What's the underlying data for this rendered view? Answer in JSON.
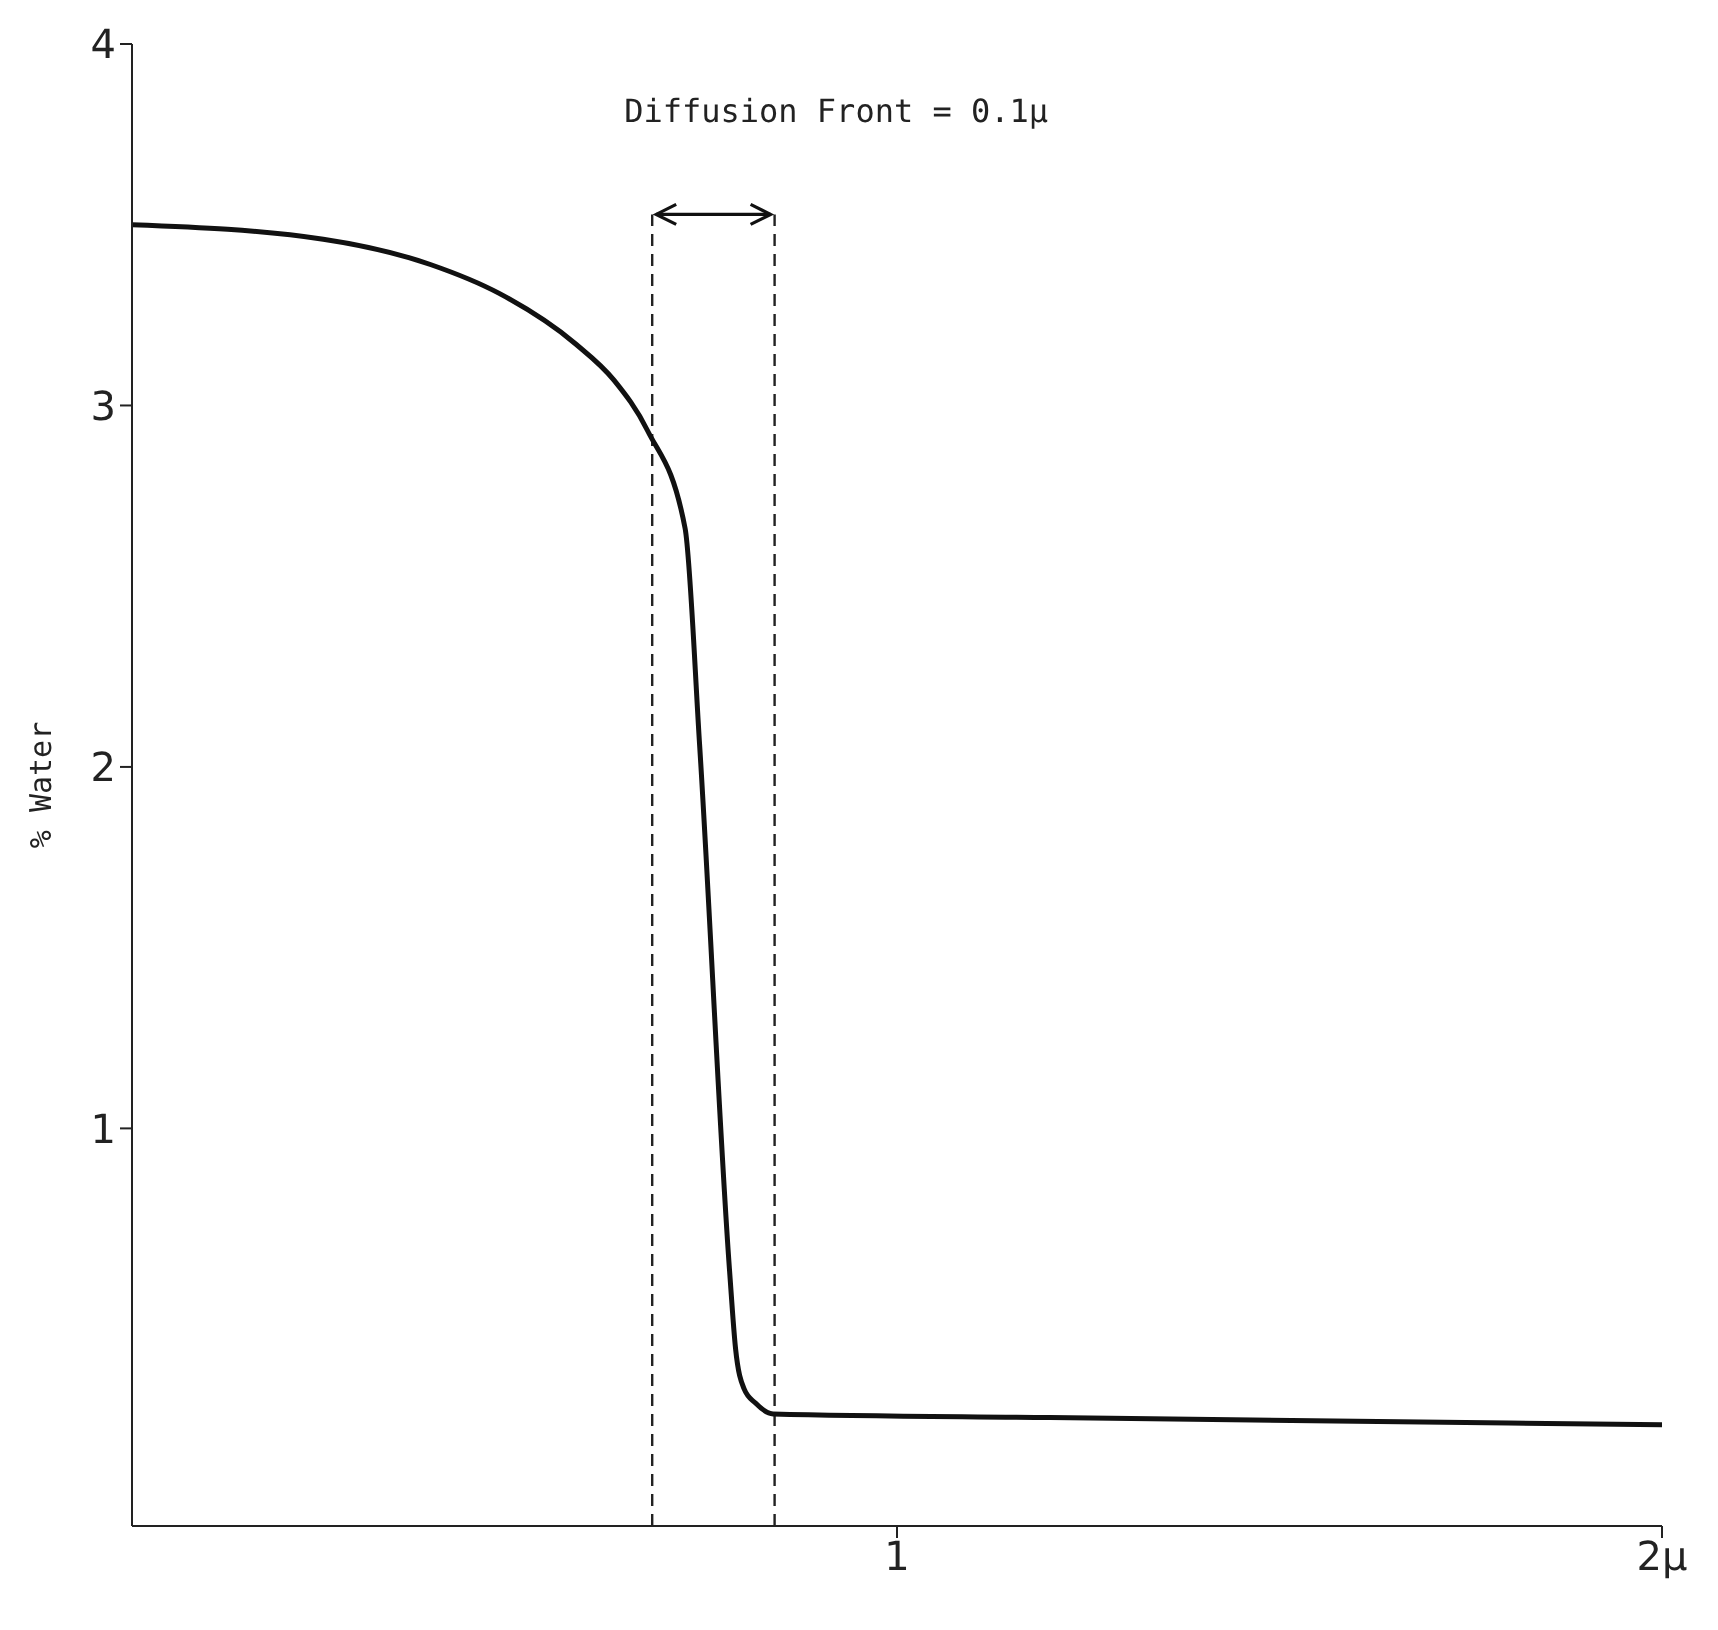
{
  "chart_data": {
    "type": "line",
    "ylabel": "% Water",
    "x": [
      0,
      0.25,
      0.39,
      0.48,
      0.58,
      0.63,
      0.674,
      0.723,
      0.742,
      0.781,
      0.789,
      0.8,
      0.815,
      0.838,
      1.2,
      1.6,
      2
    ],
    "series": [
      {
        "color": "#111111",
        "values": [
          3.5,
          3.46,
          3.39,
          3.31,
          3.17,
          3.07,
          2.93,
          2.66,
          2.06,
          0.61,
          0.39,
          0.28,
          0.24,
          0.21,
          0.2,
          0.19,
          0.18
        ]
      }
    ],
    "xlim": [
      0,
      2
    ],
    "xticks": [
      1,
      {
        "value": 2,
        "label": "2μ"
      }
    ],
    "ylim": [
      -0.1,
      4
    ],
    "yticks": [
      1,
      2,
      3,
      4
    ],
    "ref_lines": [
      {
        "axis": "x",
        "value": 0.68,
        "line_style": "dashed"
      },
      {
        "axis": "x",
        "value": 0.84,
        "line_style": "dashed"
      }
    ],
    "annotations": [
      "Diffusion Front = 0.1μ"
    ],
    "grid": false,
    "legend": false,
    "marker": "none",
    "line_style": "solid"
  }
}
